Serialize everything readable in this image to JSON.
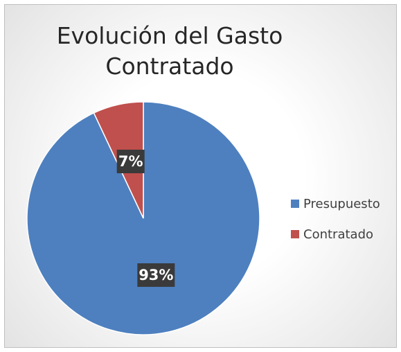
{
  "chart_data": {
    "type": "pie",
    "title": "Evolución del Gasto Contratado",
    "categories": [
      "Presupuesto",
      "Contratado"
    ],
    "values": [
      93,
      7
    ],
    "value_labels": [
      "93%",
      "7%"
    ],
    "colors": [
      "#4e80bf",
      "#c0504d"
    ],
    "legend": "right"
  }
}
